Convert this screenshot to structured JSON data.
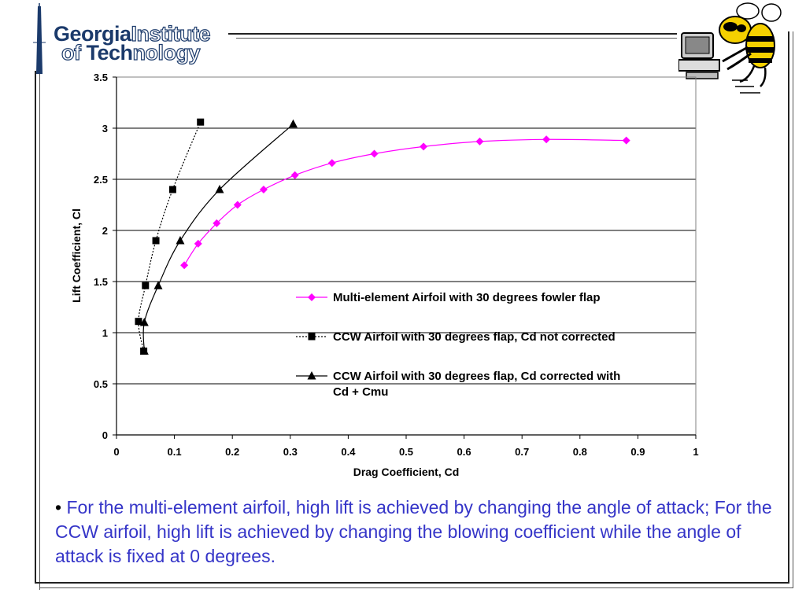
{
  "logo": {
    "line1_solid": "Georgia",
    "line1_outline": "Institute",
    "line2_outline": "of ",
    "line2_solid": "Tech",
    "line2_outline_end": "nology"
  },
  "mascot": {
    "icon": "yellow-jacket-mascot-icon"
  },
  "chart_data": {
    "type": "line",
    "xlabel": "Drag Coefficient, Cd",
    "ylabel": "Lift Coefficient, Cl",
    "xlim": [
      0,
      1
    ],
    "ylim": [
      0,
      3.5
    ],
    "xticks": [
      "0",
      "0.1",
      "0.2",
      "0.3",
      "0.4",
      "0.5",
      "0.6",
      "0.7",
      "0.8",
      "0.9",
      "1"
    ],
    "yticks": [
      "0",
      "0.5",
      "1",
      "1.5",
      "2",
      "2.5",
      "3",
      "3.5"
    ],
    "grid": "horizontal",
    "legend_position": "inside-right",
    "series": [
      {
        "name": "Multi-element Airfoil with 30 degrees fowler flap",
        "color": "#ff00ff",
        "marker": "diamond",
        "line": "solid",
        "points": [
          [
            0.117,
            1.66
          ],
          [
            0.141,
            1.87
          ],
          [
            0.173,
            2.07
          ],
          [
            0.209,
            2.25
          ],
          [
            0.254,
            2.4
          ],
          [
            0.308,
            2.54
          ],
          [
            0.372,
            2.66
          ],
          [
            0.445,
            2.75
          ],
          [
            0.53,
            2.82
          ],
          [
            0.627,
            2.87
          ],
          [
            0.742,
            2.89
          ],
          [
            0.88,
            2.88
          ]
        ]
      },
      {
        "name": "CCW Airfoil with 30 degrees flap, Cd not corrected",
        "color": "#000000",
        "marker": "square",
        "line": "dotted",
        "points": [
          [
            0.047,
            0.82
          ],
          [
            0.038,
            1.11
          ],
          [
            0.05,
            1.46
          ],
          [
            0.068,
            1.9
          ],
          [
            0.097,
            2.4
          ],
          [
            0.145,
            3.06
          ]
        ]
      },
      {
        "name": "CCW Airfoil with 30 degrees flap, Cd corrected with Cd + Cmu",
        "color": "#000000",
        "marker": "triangle",
        "line": "solid",
        "points": [
          [
            0.048,
            0.82
          ],
          [
            0.048,
            1.1
          ],
          [
            0.072,
            1.46
          ],
          [
            0.11,
            1.9
          ],
          [
            0.178,
            2.4
          ],
          [
            0.305,
            3.04
          ]
        ]
      }
    ]
  },
  "legend_lines": [
    [
      "Multi-element Airfoil with 30 degrees fowler flap"
    ],
    [
      "CCW Airfoil with 30 degrees flap, Cd not corrected"
    ],
    [
      "CCW Airfoil with 30 degrees flap, Cd corrected with",
      "Cd + Cmu"
    ]
  ],
  "bullet": {
    "symbol": "•",
    "text": "For the multi-element airfoil, high lift is achieved by changing the angle of attack; For the CCW airfoil, high lift is achieved by changing the blowing coefficient while the angle of attack is fixed at 0 degrees."
  }
}
